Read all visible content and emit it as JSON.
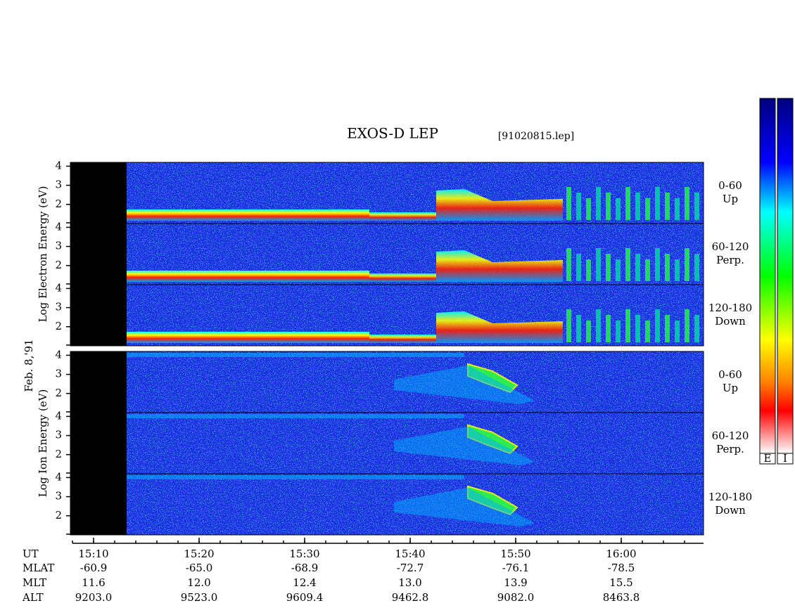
{
  "title": "EXOS-D LEP",
  "file": "[91020815.lep]",
  "date": "Feb. 8,'91",
  "groups": [
    {
      "ylabel": "Log   Electron   Energy (eV)",
      "panels": [
        {
          "angle": "0-60",
          "dir": "Up"
        },
        {
          "angle": "60-120",
          "dir": "Perp."
        },
        {
          "angle": "120-180",
          "dir": "Down"
        }
      ]
    },
    {
      "ylabel": "Log   Ion   Energy (eV)",
      "panels": [
        {
          "angle": "0-60",
          "dir": "Up"
        },
        {
          "angle": "60-120",
          "dir": "Perp."
        },
        {
          "angle": "120-180",
          "dir": "Down"
        }
      ]
    }
  ],
  "ylim": [
    1,
    4.2
  ],
  "yticks": [
    2,
    3,
    4
  ],
  "xlim": [
    908,
    967.8
  ],
  "xticks": [
    {
      "value": 910,
      "label": "15:10"
    },
    {
      "value": 920,
      "label": "15:20"
    },
    {
      "value": 930,
      "label": "15:30"
    },
    {
      "value": 940,
      "label": "15:40"
    },
    {
      "value": 950,
      "label": "15:50"
    },
    {
      "value": 960,
      "label": "16:00"
    }
  ],
  "ephemeris": {
    "labels": [
      "UT",
      "MLAT",
      "MLT",
      "ALT"
    ],
    "rows": [
      [
        "-60.9",
        "-65.0",
        "-68.9",
        "-72.7",
        "-76.1",
        "-78.5"
      ],
      [
        "11.6",
        "12.0",
        "12.4",
        "13.0",
        "13.9",
        "15.5"
      ],
      [
        "9203.0",
        "9523.0",
        "9609.4",
        "9462.8",
        "9082.0",
        "8463.8"
      ]
    ]
  },
  "colorbars": [
    "E",
    "I"
  ]
}
